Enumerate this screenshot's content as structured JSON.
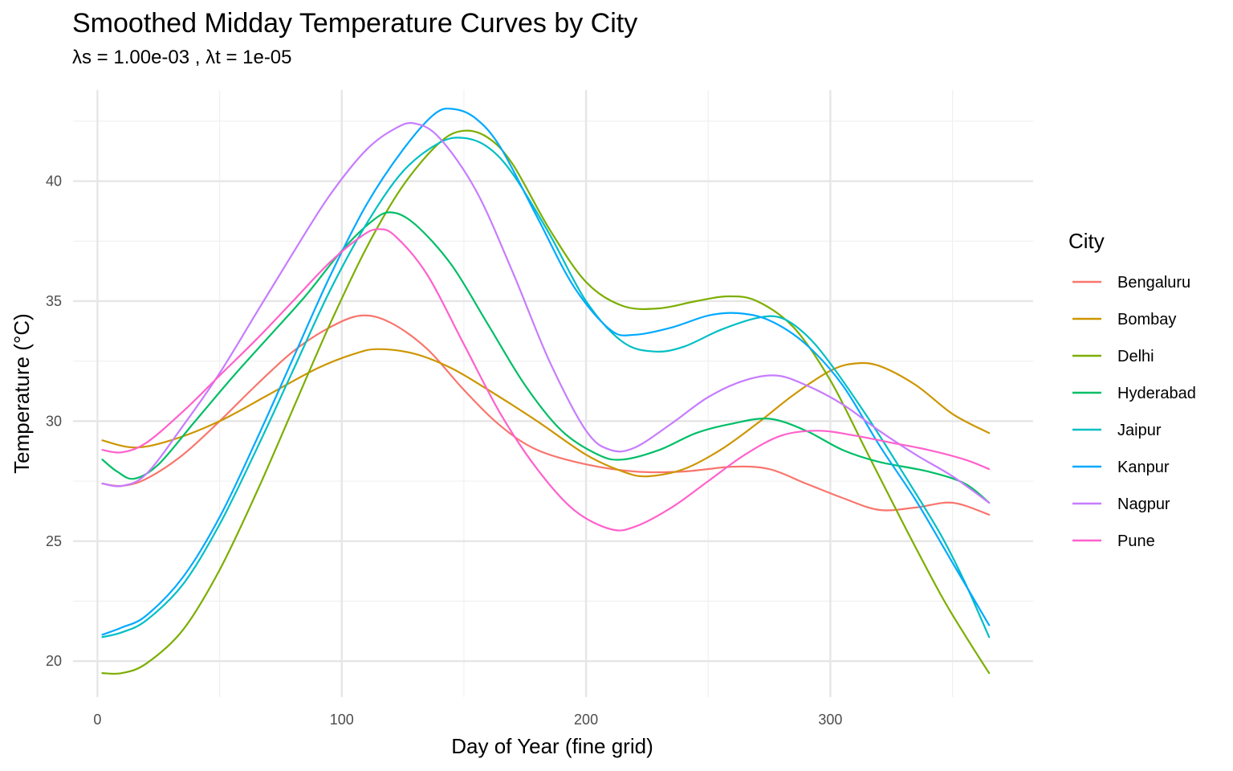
{
  "chart_data": {
    "type": "line",
    "title": "Smoothed Midday Temperature Curves by City",
    "subtitle": "λs = 1.00e-03 , λt = 1e-05",
    "xlabel": "Day of Year (fine grid)",
    "ylabel": "Temperature (°C)",
    "xlim": [
      -10,
      383
    ],
    "ylim": [
      18.5,
      43.8
    ],
    "x_ticks": [
      0,
      100,
      200,
      300
    ],
    "y_ticks": [
      20,
      25,
      30,
      35,
      40
    ],
    "grid": true,
    "legend": {
      "title": "City",
      "placement": "right"
    },
    "series": [
      {
        "name": "Bengaluru",
        "color": "#F8766D",
        "points": [
          [
            2,
            27.4
          ],
          [
            10,
            27.3
          ],
          [
            20,
            27.6
          ],
          [
            35,
            28.6
          ],
          [
            50,
            30.0
          ],
          [
            65,
            31.5
          ],
          [
            80,
            32.9
          ],
          [
            95,
            33.9
          ],
          [
            108,
            34.4
          ],
          [
            120,
            34.1
          ],
          [
            135,
            33.0
          ],
          [
            150,
            31.3
          ],
          [
            165,
            29.8
          ],
          [
            180,
            28.8
          ],
          [
            200,
            28.2
          ],
          [
            220,
            27.9
          ],
          [
            240,
            27.9
          ],
          [
            260,
            28.1
          ],
          [
            275,
            28.0
          ],
          [
            290,
            27.4
          ],
          [
            305,
            26.8
          ],
          [
            320,
            26.3
          ],
          [
            335,
            26.4
          ],
          [
            350,
            26.6
          ],
          [
            365,
            26.1
          ]
        ]
      },
      {
        "name": "Bombay",
        "color": "#CD9600",
        "points": [
          [
            2,
            29.2
          ],
          [
            15,
            28.9
          ],
          [
            30,
            29.2
          ],
          [
            50,
            30.0
          ],
          [
            70,
            31.1
          ],
          [
            90,
            32.2
          ],
          [
            105,
            32.8
          ],
          [
            115,
            33.0
          ],
          [
            130,
            32.8
          ],
          [
            145,
            32.2
          ],
          [
            160,
            31.3
          ],
          [
            180,
            30.0
          ],
          [
            200,
            28.6
          ],
          [
            215,
            27.9
          ],
          [
            225,
            27.7
          ],
          [
            240,
            28.0
          ],
          [
            255,
            28.8
          ],
          [
            270,
            29.9
          ],
          [
            285,
            31.1
          ],
          [
            300,
            32.1
          ],
          [
            310,
            32.4
          ],
          [
            320,
            32.3
          ],
          [
            335,
            31.5
          ],
          [
            350,
            30.3
          ],
          [
            365,
            29.5
          ]
        ]
      },
      {
        "name": "Delhi",
        "color": "#7CAE00",
        "points": [
          [
            2,
            19.5
          ],
          [
            10,
            19.5
          ],
          [
            20,
            19.9
          ],
          [
            35,
            21.3
          ],
          [
            50,
            23.8
          ],
          [
            65,
            27.0
          ],
          [
            80,
            30.5
          ],
          [
            95,
            34.0
          ],
          [
            110,
            37.2
          ],
          [
            125,
            39.8
          ],
          [
            140,
            41.6
          ],
          [
            150,
            42.1
          ],
          [
            160,
            41.8
          ],
          [
            170,
            40.7
          ],
          [
            185,
            38.0
          ],
          [
            200,
            35.8
          ],
          [
            215,
            34.8
          ],
          [
            230,
            34.7
          ],
          [
            245,
            35.0
          ],
          [
            258,
            35.2
          ],
          [
            270,
            35.0
          ],
          [
            285,
            33.9
          ],
          [
            300,
            31.7
          ],
          [
            315,
            28.7
          ],
          [
            330,
            25.7
          ],
          [
            345,
            22.8
          ],
          [
            355,
            21.1
          ],
          [
            365,
            19.5
          ]
        ]
      },
      {
        "name": "Hyderabad",
        "color": "#00BE67",
        "points": [
          [
            2,
            28.4
          ],
          [
            8,
            27.9
          ],
          [
            15,
            27.6
          ],
          [
            25,
            28.2
          ],
          [
            40,
            30.0
          ],
          [
            55,
            31.8
          ],
          [
            70,
            33.5
          ],
          [
            85,
            35.2
          ],
          [
            100,
            37.1
          ],
          [
            112,
            38.3
          ],
          [
            120,
            38.7
          ],
          [
            130,
            38.2
          ],
          [
            145,
            36.5
          ],
          [
            160,
            34.0
          ],
          [
            175,
            31.5
          ],
          [
            190,
            29.6
          ],
          [
            205,
            28.6
          ],
          [
            215,
            28.4
          ],
          [
            230,
            28.8
          ],
          [
            245,
            29.5
          ],
          [
            260,
            29.9
          ],
          [
            275,
            30.1
          ],
          [
            290,
            29.6
          ],
          [
            305,
            28.8
          ],
          [
            320,
            28.3
          ],
          [
            340,
            27.9
          ],
          [
            355,
            27.4
          ],
          [
            365,
            26.6
          ]
        ]
      },
      {
        "name": "Jaipur",
        "color": "#00BFC4",
        "points": [
          [
            2,
            21.0
          ],
          [
            10,
            21.2
          ],
          [
            20,
            21.7
          ],
          [
            35,
            23.2
          ],
          [
            50,
            25.7
          ],
          [
            65,
            28.8
          ],
          [
            80,
            32.1
          ],
          [
            95,
            35.4
          ],
          [
            110,
            38.2
          ],
          [
            125,
            40.4
          ],
          [
            140,
            41.6
          ],
          [
            150,
            41.8
          ],
          [
            160,
            41.4
          ],
          [
            170,
            40.3
          ],
          [
            185,
            37.8
          ],
          [
            200,
            35.0
          ],
          [
            215,
            33.3
          ],
          [
            228,
            32.9
          ],
          [
            240,
            33.1
          ],
          [
            255,
            33.8
          ],
          [
            270,
            34.3
          ],
          [
            280,
            34.3
          ],
          [
            290,
            33.6
          ],
          [
            300,
            32.4
          ],
          [
            315,
            30.2
          ],
          [
            330,
            27.8
          ],
          [
            345,
            25.3
          ],
          [
            355,
            23.3
          ],
          [
            365,
            21.0
          ]
        ]
      },
      {
        "name": "Kanpur",
        "color": "#00A9FF",
        "points": [
          [
            2,
            21.1
          ],
          [
            10,
            21.4
          ],
          [
            20,
            21.9
          ],
          [
            35,
            23.5
          ],
          [
            50,
            26.0
          ],
          [
            65,
            29.2
          ],
          [
            80,
            32.6
          ],
          [
            95,
            36.0
          ],
          [
            110,
            39.0
          ],
          [
            125,
            41.3
          ],
          [
            138,
            42.8
          ],
          [
            146,
            43.0
          ],
          [
            155,
            42.6
          ],
          [
            165,
            41.4
          ],
          [
            180,
            38.5
          ],
          [
            195,
            35.6
          ],
          [
            210,
            33.8
          ],
          [
            220,
            33.6
          ],
          [
            235,
            33.9
          ],
          [
            250,
            34.4
          ],
          [
            262,
            34.5
          ],
          [
            275,
            34.2
          ],
          [
            290,
            33.2
          ],
          [
            305,
            31.5
          ],
          [
            320,
            29.0
          ],
          [
            335,
            26.7
          ],
          [
            350,
            24.1
          ],
          [
            365,
            21.5
          ]
        ]
      },
      {
        "name": "Nagpur",
        "color": "#C77CFF",
        "points": [
          [
            2,
            27.4
          ],
          [
            10,
            27.3
          ],
          [
            20,
            27.8
          ],
          [
            35,
            29.8
          ],
          [
            50,
            32.0
          ],
          [
            65,
            34.5
          ],
          [
            80,
            37.0
          ],
          [
            95,
            39.4
          ],
          [
            110,
            41.3
          ],
          [
            122,
            42.2
          ],
          [
            130,
            42.4
          ],
          [
            140,
            41.8
          ],
          [
            155,
            39.6
          ],
          [
            170,
            36.2
          ],
          [
            185,
            32.5
          ],
          [
            200,
            29.6
          ],
          [
            210,
            28.8
          ],
          [
            220,
            28.9
          ],
          [
            235,
            29.9
          ],
          [
            250,
            31.0
          ],
          [
            265,
            31.7
          ],
          [
            278,
            31.9
          ],
          [
            290,
            31.5
          ],
          [
            305,
            30.7
          ],
          [
            320,
            29.6
          ],
          [
            335,
            28.6
          ],
          [
            350,
            27.7
          ],
          [
            365,
            26.6
          ]
        ]
      },
      {
        "name": "Pune",
        "color": "#FF61CC",
        "points": [
          [
            2,
            28.8
          ],
          [
            10,
            28.7
          ],
          [
            20,
            29.1
          ],
          [
            35,
            30.4
          ],
          [
            50,
            31.9
          ],
          [
            65,
            33.4
          ],
          [
            80,
            35.0
          ],
          [
            95,
            36.6
          ],
          [
            108,
            37.7
          ],
          [
            115,
            38.0
          ],
          [
            122,
            37.7
          ],
          [
            135,
            36.1
          ],
          [
            150,
            33.2
          ],
          [
            165,
            30.3
          ],
          [
            180,
            28.0
          ],
          [
            195,
            26.3
          ],
          [
            210,
            25.5
          ],
          [
            220,
            25.6
          ],
          [
            235,
            26.4
          ],
          [
            250,
            27.5
          ],
          [
            265,
            28.6
          ],
          [
            280,
            29.4
          ],
          [
            295,
            29.6
          ],
          [
            310,
            29.4
          ],
          [
            325,
            29.1
          ],
          [
            340,
            28.8
          ],
          [
            355,
            28.4
          ],
          [
            365,
            28.0
          ]
        ]
      }
    ]
  }
}
